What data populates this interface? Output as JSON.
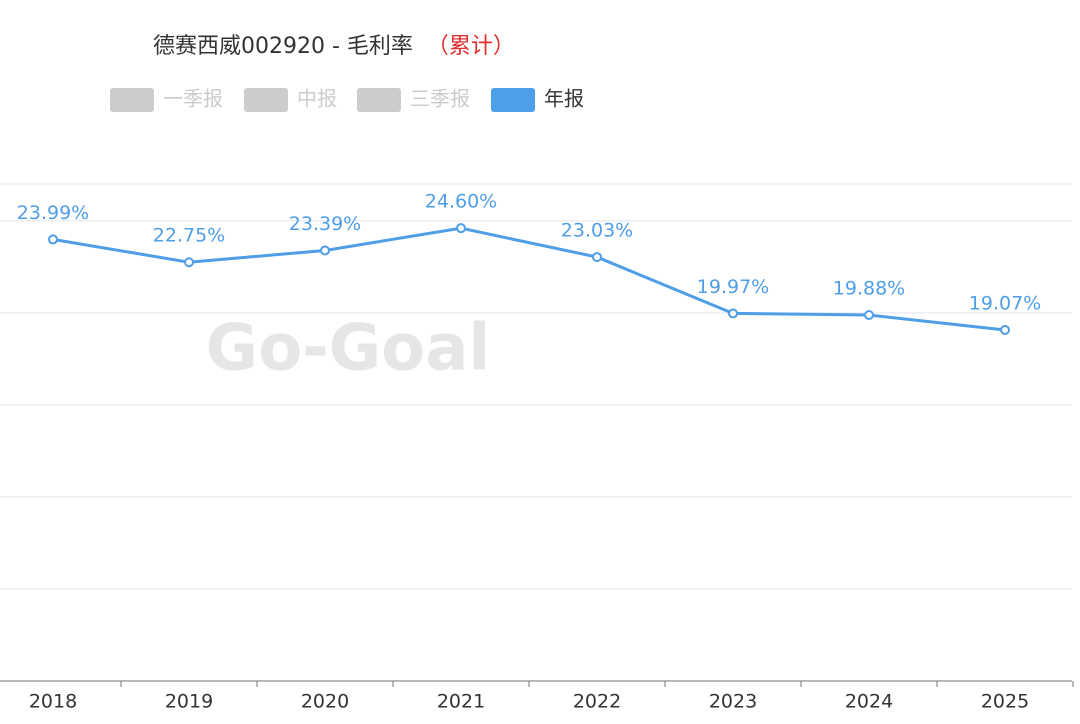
{
  "chart_data": {
    "type": "line",
    "title": "德赛西威002920 - 毛利率",
    "subtitle": "（累计）",
    "watermark": "Go-Goal",
    "categories": [
      "2018",
      "2019",
      "2020",
      "2021",
      "2022",
      "2023",
      "2024",
      "2025"
    ],
    "series": [
      {
        "name": "一季报",
        "color": "#cccccc",
        "hidden": true
      },
      {
        "name": "中报",
        "color": "#cccccc",
        "hidden": true
      },
      {
        "name": "三季报",
        "color": "#cccccc",
        "hidden": true
      },
      {
        "name": "年报",
        "color": "#4f9ee8",
        "values": [
          23.99,
          22.75,
          23.39,
          24.6,
          23.03,
          19.97,
          19.88,
          19.07
        ],
        "value_labels": [
          "23.99%",
          "22.75%",
          "23.39%",
          "24.60%",
          "23.03%",
          "19.97%",
          "19.88%",
          "19.07%"
        ]
      }
    ],
    "ylim": [
      0,
      27
    ],
    "yticks": [
      0,
      5,
      10,
      15,
      20,
      25
    ],
    "grid": true
  }
}
